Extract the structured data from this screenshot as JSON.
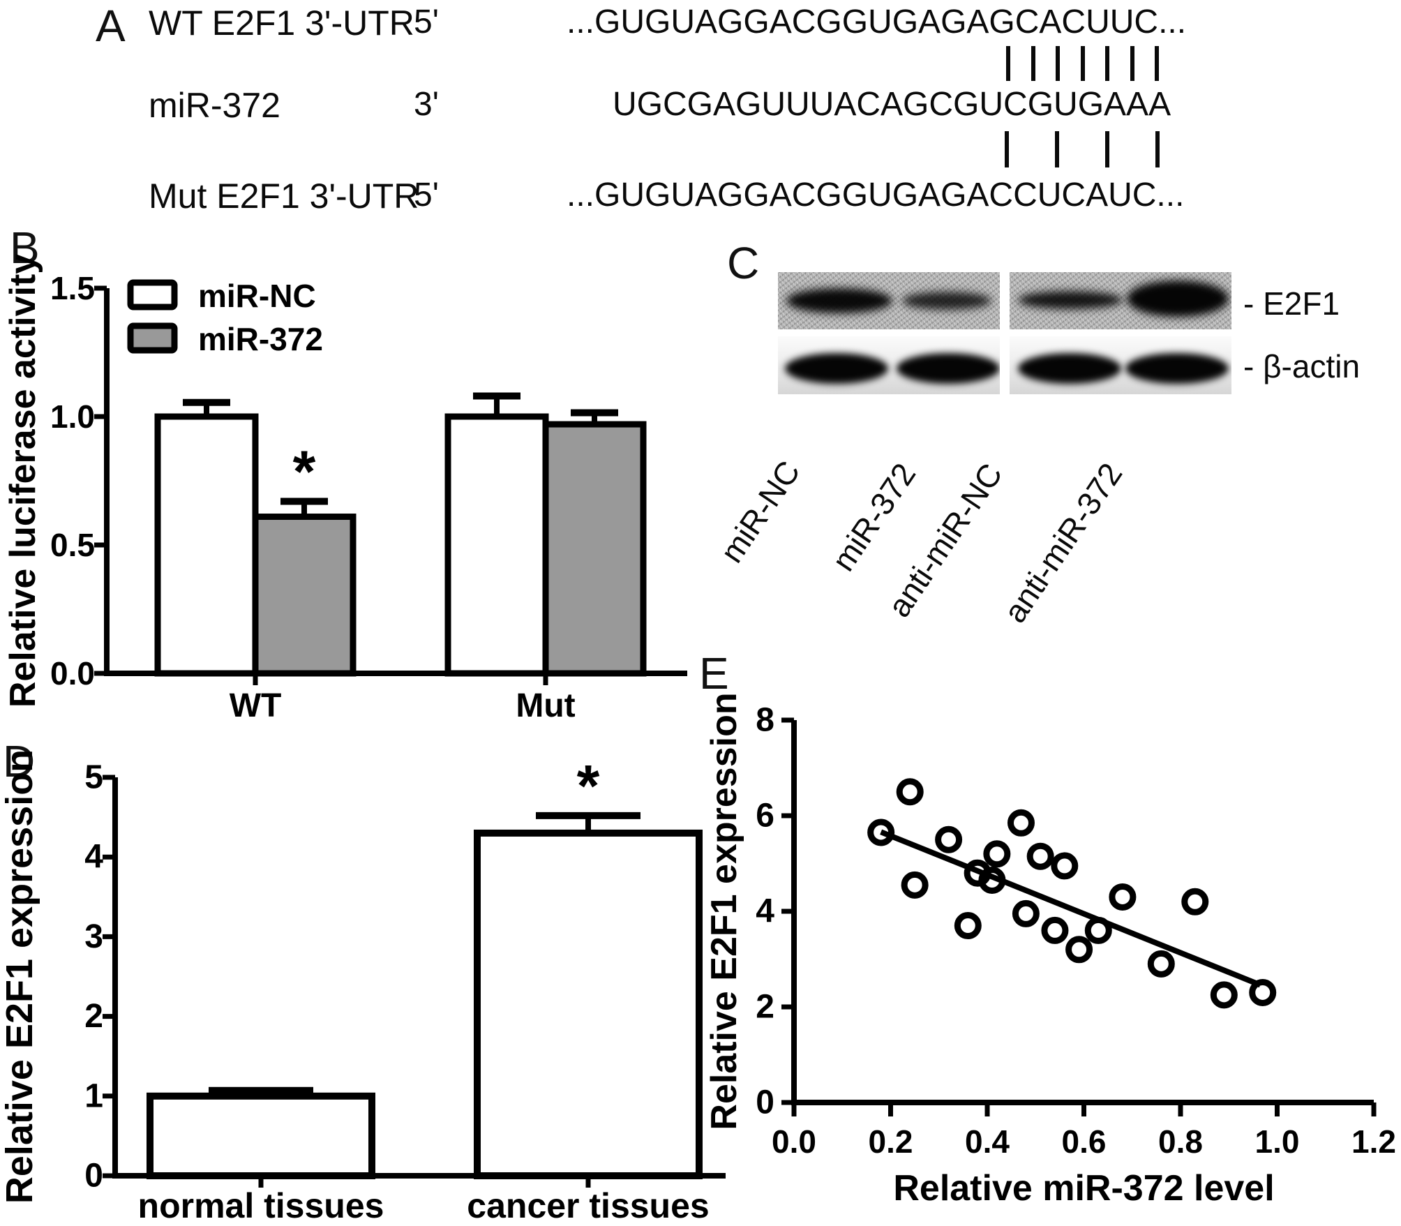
{
  "figure_background": "#ffffff",
  "accent_colors": {
    "bar_gray": "#999999",
    "ink": "#000000"
  },
  "panels": {
    "A": {
      "letter": "A",
      "rows": [
        {
          "label": "WT E2F1 3'-UTR",
          "prime": "5'",
          "seq": "...GUGUAGGACGGUGAGAGCACUUC..."
        },
        {
          "label": "miR-372",
          "prime": "3'",
          "seq": "UGCGAGUUUACAGCGUCGUGAAA"
        },
        {
          "label": "Mut E2F1 3'-UTR",
          "prime": "5'",
          "seq": "...GUGUAGGACGGUGAGACCUCAUC..."
        }
      ],
      "bonds": [
        {
          "count": 7
        },
        {
          "count": 4
        }
      ]
    },
    "B": {
      "letter": "B"
    },
    "C": {
      "letter": "C",
      "targets": [
        {
          "label": "- E2F1"
        },
        {
          "label": "- β-actin"
        }
      ],
      "lanes": [
        "miR-NC",
        "miR-372",
        "anti-miR-NC",
        "anti-miR-372"
      ],
      "e2f1_band_intensity": [
        "strong",
        "weak",
        "medium",
        "very strong"
      ],
      "actin_band_intensity": [
        "strong",
        "strong",
        "strong",
        "strong"
      ]
    },
    "D": {
      "letter": "D"
    },
    "E": {
      "letter": "E"
    }
  },
  "chart_data": [
    {
      "id": "B",
      "type": "bar",
      "title": "",
      "ylabel": "Relative luciferase activity",
      "categories": [
        "WT",
        "Mut"
      ],
      "series": [
        {
          "name": "miR-NC",
          "fill": "#ffffff",
          "values": [
            1.0,
            1.0
          ],
          "errors": [
            0.055,
            0.08
          ]
        },
        {
          "name": "miR-372",
          "fill": "#999999",
          "values": [
            0.61,
            0.97
          ],
          "errors": [
            0.06,
            0.045
          ]
        }
      ],
      "ylim": [
        0,
        1.5
      ],
      "yticks": [
        0.0,
        0.5,
        1.0,
        1.5
      ],
      "ytick_decimals": 1,
      "legend_position": "top-left",
      "grid": false,
      "annotations": [
        {
          "text": "*",
          "category": "WT",
          "series": "miR-372"
        }
      ]
    },
    {
      "id": "D",
      "type": "bar",
      "title": "",
      "ylabel": "Relative E2F1 expression",
      "categories": [
        "normal tissues",
        "cancer tissues"
      ],
      "series": [
        {
          "name": "",
          "fill": "#ffffff",
          "values": [
            1.0,
            4.3
          ],
          "errors": [
            0.07,
            0.22
          ]
        }
      ],
      "ylim": [
        0,
        5
      ],
      "yticks": [
        0,
        1,
        2,
        3,
        4,
        5
      ],
      "ytick_decimals": 0,
      "legend_position": "none",
      "grid": false,
      "annotations": [
        {
          "text": "*",
          "category": "cancer tissues",
          "series": ""
        }
      ]
    },
    {
      "id": "E",
      "type": "scatter",
      "title": "",
      "xlabel": "Relative miR-372 level",
      "ylabel": "Relative E2F1 expression",
      "xlim": [
        0,
        1.2
      ],
      "ylim": [
        0,
        8
      ],
      "xticks": [
        0.0,
        0.2,
        0.4,
        0.6,
        0.8,
        1.0,
        1.2
      ],
      "yticks": [
        0,
        2,
        4,
        6,
        8
      ],
      "xtick_decimals": 1,
      "grid": false,
      "points": [
        [
          0.24,
          6.5
        ],
        [
          0.18,
          5.65
        ],
        [
          0.32,
          5.5
        ],
        [
          0.47,
          5.85
        ],
        [
          0.42,
          5.2
        ],
        [
          0.51,
          5.15
        ],
        [
          0.56,
          4.95
        ],
        [
          0.38,
          4.8
        ],
        [
          0.41,
          4.65
        ],
        [
          0.25,
          4.55
        ],
        [
          0.68,
          4.3
        ],
        [
          0.48,
          3.95
        ],
        [
          0.36,
          3.7
        ],
        [
          0.54,
          3.6
        ],
        [
          0.63,
          3.6
        ],
        [
          0.59,
          3.2
        ],
        [
          0.83,
          4.2
        ],
        [
          0.76,
          2.9
        ],
        [
          0.89,
          2.25
        ],
        [
          0.97,
          2.3
        ]
      ],
      "trend_line": [
        [
          0.18,
          5.66
        ],
        [
          0.965,
          2.46
        ]
      ]
    }
  ]
}
